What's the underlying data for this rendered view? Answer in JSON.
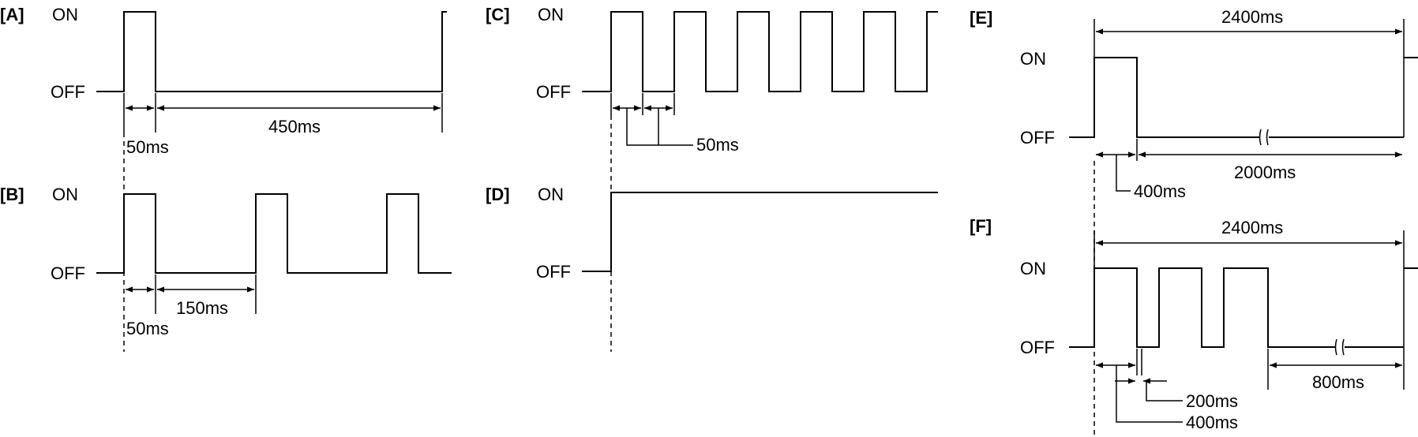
{
  "panels": [
    {
      "id": "A",
      "label": "[A]",
      "on": "ON",
      "off": "OFF",
      "durations": [
        "50ms",
        "450ms"
      ]
    },
    {
      "id": "B",
      "label": "[B]",
      "on": "ON",
      "off": "OFF",
      "durations": [
        "50ms",
        "150ms"
      ]
    },
    {
      "id": "C",
      "label": "[C]",
      "on": "ON",
      "off": "OFF",
      "durations": [
        "50ms"
      ]
    },
    {
      "id": "D",
      "label": "[D]",
      "on": "ON",
      "off": "OFF",
      "durations": []
    },
    {
      "id": "E",
      "label": "[E]",
      "on": "ON",
      "off": "OFF",
      "durations": [
        "2400ms",
        "400ms",
        "2000ms"
      ]
    },
    {
      "id": "F",
      "label": "[F]",
      "on": "ON",
      "off": "OFF",
      "durations": [
        "2400ms",
        "200ms",
        "400ms",
        "800ms"
      ]
    }
  ]
}
